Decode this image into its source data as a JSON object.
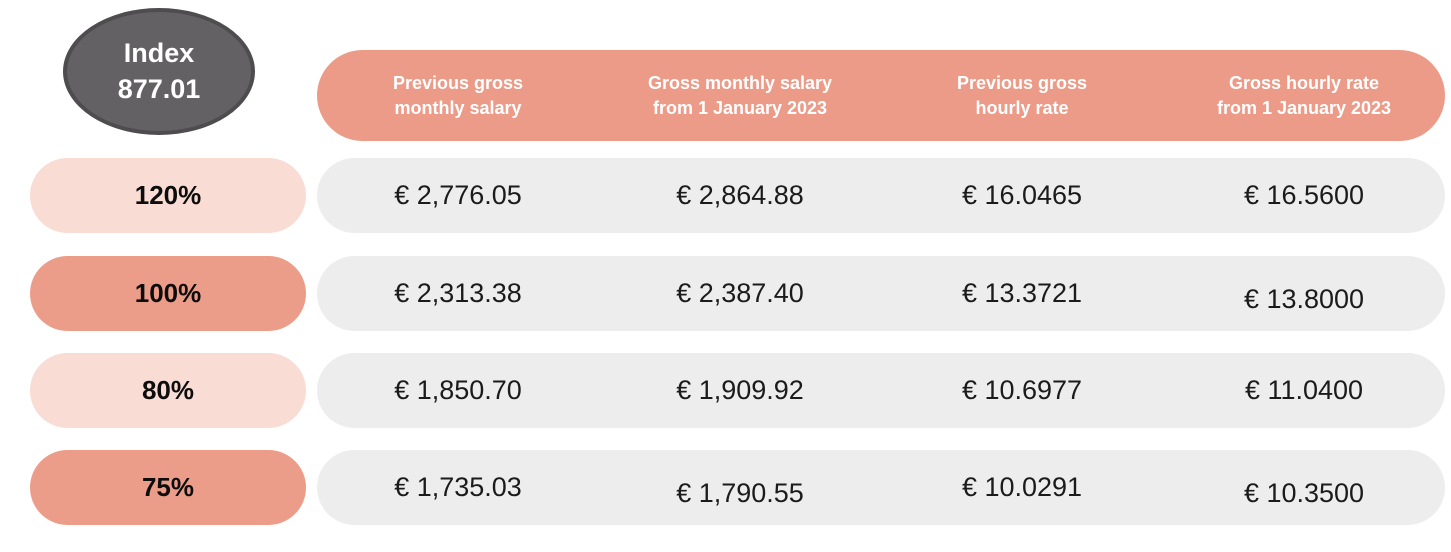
{
  "badge": {
    "title": "Index",
    "value": "877.01"
  },
  "columns": [
    "Previous gross\nmonthly salary",
    "Gross monthly salary\nfrom 1 January 2023",
    "Previous gross\nhourly rate",
    "Gross hourly rate\nfrom 1 January 2023"
  ],
  "rows": [
    {
      "percent": "120%",
      "values": [
        "€ 2,776.05",
        "€ 2,864.88",
        "€ 16.0465",
        "€ 16.5600"
      ]
    },
    {
      "percent": "100%",
      "values": [
        "€ 2,313.38",
        "€ 2,387.40",
        "€ 13.3721",
        "€ 13.8000"
      ]
    },
    {
      "percent": "80%",
      "values": [
        "€ 1,850.70",
        "€ 1,909.92",
        "€ 10.6977",
        "€ 11.0400"
      ]
    },
    {
      "percent": "75%",
      "values": [
        "€ 1,735.03",
        "€ 1,790.55",
        "€ 10.0291",
        "€ 10.3500"
      ]
    }
  ],
  "colors": {
    "badge_fill": "#636163",
    "badge_border": "#4e4c4e",
    "header_bg": "#ec9b88",
    "header_text": "#ffffff",
    "pill_light": "#f9dcd3",
    "pill_dark": "#ec9d8a",
    "row_bg": "#eeedee",
    "value_text": "#1b1b1b"
  }
}
